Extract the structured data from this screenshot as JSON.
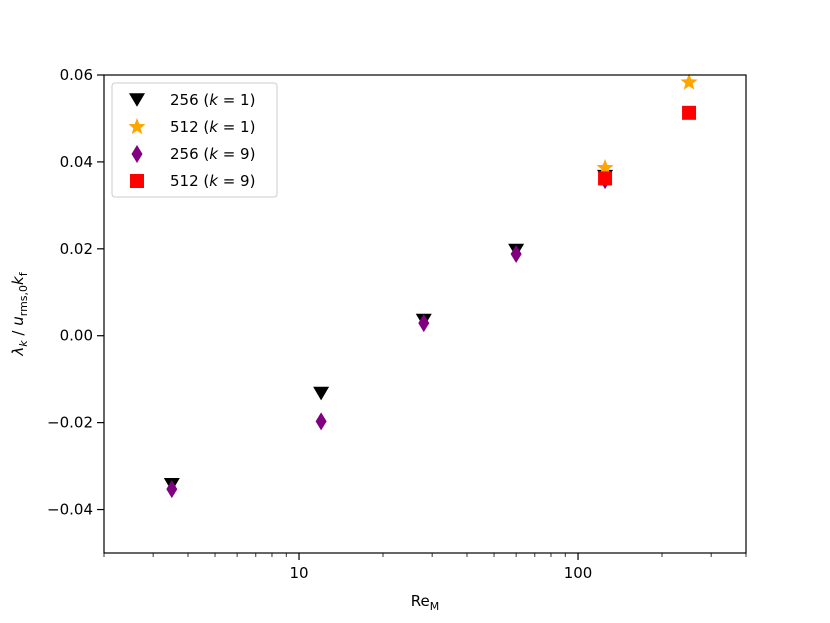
{
  "chart_data": {
    "type": "scatter",
    "x_scale": "log",
    "xlim": [
      2,
      400
    ],
    "ylim": [
      -0.05,
      0.06
    ],
    "grid": false,
    "legend_position": "top-left",
    "xlabel": {
      "base": "Re",
      "sub": "M"
    },
    "ylabel": {
      "lambda": "λ",
      "k": "k",
      "slash": " / ",
      "u": "u",
      "rms": "rms,0",
      "kf": "k",
      "f": "f"
    },
    "x_ticks": [
      {
        "value": 10,
        "label": "10"
      },
      {
        "value": 100,
        "label": "100"
      }
    ],
    "y_ticks": [
      {
        "value": -0.04,
        "label": "−0.04"
      },
      {
        "value": -0.02,
        "label": "−0.02"
      },
      {
        "value": 0.0,
        "label": "0.00"
      },
      {
        "value": 0.02,
        "label": "0.02"
      },
      {
        "value": 0.04,
        "label": "0.04"
      },
      {
        "value": 0.06,
        "label": "0.06"
      }
    ],
    "series": [
      {
        "name": "256 (k = 1)",
        "legend": {
          "num": "256 (",
          "k": "k",
          "eq": " = 1)"
        },
        "marker": "triangle-down",
        "color": "#000000",
        "points": [
          {
            "x": 3.5,
            "y": -0.0343
          },
          {
            "x": 12,
            "y": -0.0133
          },
          {
            "x": 28,
            "y": 0.0035
          },
          {
            "x": 60,
            "y": 0.0196
          },
          {
            "x": 125,
            "y": 0.0366
          }
        ]
      },
      {
        "name": "512 (k = 1)",
        "legend": {
          "num": "512 (",
          "k": "k",
          "eq": " = 1)"
        },
        "marker": "star",
        "color": "#FFA500",
        "points": [
          {
            "x": 125,
            "y": 0.0386
          },
          {
            "x": 250,
            "y": 0.0583
          }
        ]
      },
      {
        "name": "256 (k = 9)",
        "legend": {
          "num": "256 (",
          "k": "k",
          "eq": " = 9)"
        },
        "marker": "thin-diamond",
        "color": "#800080",
        "points": [
          {
            "x": 3.5,
            "y": -0.0353
          },
          {
            "x": 12,
            "y": -0.0197
          },
          {
            "x": 28,
            "y": 0.0029
          },
          {
            "x": 60,
            "y": 0.0188
          },
          {
            "x": 125,
            "y": 0.0358
          }
        ]
      },
      {
        "name": "512 (k = 9)",
        "legend": {
          "num": "512 (",
          "k": "k",
          "eq": " = 9)"
        },
        "marker": "square",
        "color": "#FF0000",
        "points": [
          {
            "x": 125,
            "y": 0.0362
          },
          {
            "x": 250,
            "y": 0.0513
          }
        ]
      }
    ]
  }
}
